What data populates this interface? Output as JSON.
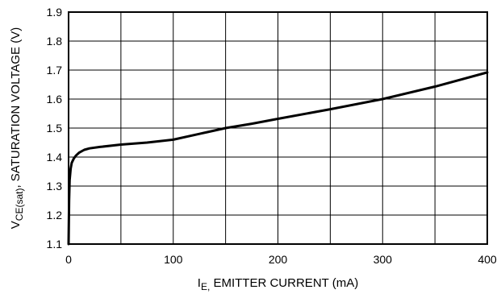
{
  "chart_data": {
    "type": "line",
    "title": "",
    "xlabel": {
      "main": "I",
      "sub": "E,",
      "rest": " EMITTER CURRENT (mA)"
    },
    "ylabel": {
      "main": "V",
      "sub": "CE(sat)",
      "rest": ", SATURATION VOLTAGE (V)"
    },
    "xlim": [
      0,
      400
    ],
    "ylim": [
      1.1,
      1.9
    ],
    "x_ticks": [
      0,
      100,
      200,
      300,
      400
    ],
    "x_tick_labels": [
      "0",
      "100",
      "200",
      "300",
      "400"
    ],
    "y_ticks": [
      1.1,
      1.2,
      1.3,
      1.4,
      1.5,
      1.6,
      1.7,
      1.8,
      1.9
    ],
    "y_tick_labels": [
      "1.1",
      "1.2",
      "1.3",
      "1.4",
      "1.5",
      "1.6",
      "1.7",
      "1.8",
      "1.9"
    ],
    "x_grid": [
      0,
      50,
      100,
      150,
      200,
      250,
      300,
      350,
      400
    ],
    "y_grid": [
      1.1,
      1.2,
      1.3,
      1.4,
      1.5,
      1.6,
      1.7,
      1.8,
      1.9
    ],
    "grid": true,
    "line_color": "#000000",
    "series": [
      {
        "x": [
          0,
          0.5,
          1,
          2,
          3,
          5,
          7,
          10,
          15,
          20,
          30,
          50,
          75,
          100,
          125,
          150,
          175,
          200,
          250,
          300,
          350,
          400
        ],
        "y": [
          1.1,
          1.25,
          1.32,
          1.36,
          1.38,
          1.395,
          1.405,
          1.415,
          1.425,
          1.43,
          1.435,
          1.443,
          1.45,
          1.46,
          1.48,
          1.5,
          1.515,
          1.532,
          1.565,
          1.6,
          1.643,
          1.692
        ]
      }
    ]
  }
}
